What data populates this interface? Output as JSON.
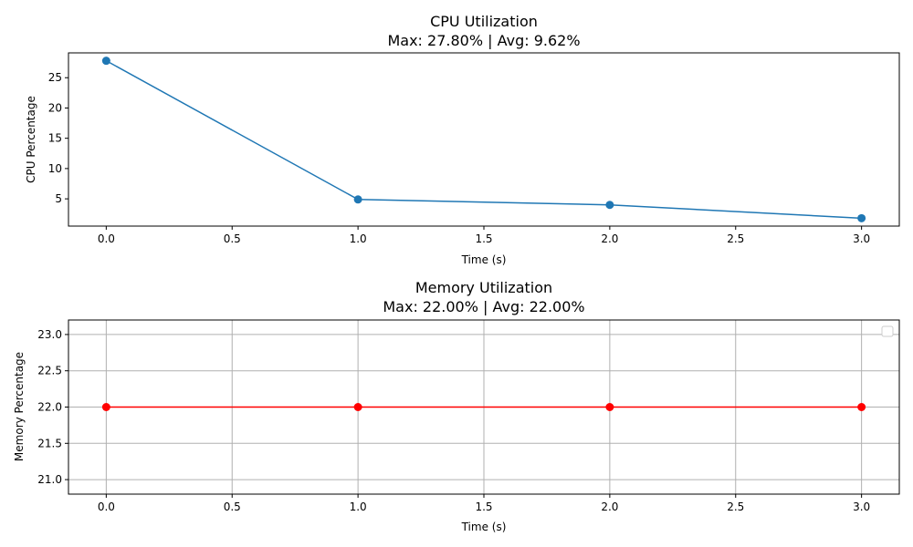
{
  "chart_data": [
    {
      "type": "line",
      "title": "CPU Utilization",
      "subtitle": "Max: 27.80% | Avg: 9.62%",
      "xlabel": "Time (s)",
      "ylabel": "CPU Percentage",
      "x": [
        0,
        1,
        2,
        3
      ],
      "series": [
        {
          "values": [
            27.8,
            4.9,
            4.0,
            1.8
          ],
          "color": "#1f77b4"
        }
      ],
      "xlim": [
        -0.15,
        3.15
      ],
      "ylim": [
        0.5,
        29.1
      ],
      "xticks": [
        0.0,
        0.5,
        1.0,
        1.5,
        2.0,
        2.5,
        3.0
      ],
      "xtick_labels": [
        "0.0",
        "0.5",
        "1.0",
        "1.5",
        "2.0",
        "2.5",
        "3.0"
      ],
      "yticks": [
        5,
        10,
        15,
        20,
        25
      ],
      "ytick_labels": [
        "5",
        "10",
        "15",
        "20",
        "25"
      ],
      "grid": false,
      "legend": false
    },
    {
      "type": "line",
      "title": "Memory Utilization",
      "subtitle": "Max: 22.00% | Avg: 22.00%",
      "xlabel": "Time (s)",
      "ylabel": "Memory Percentage",
      "x": [
        0,
        1,
        2,
        3
      ],
      "series": [
        {
          "values": [
            22.0,
            22.0,
            22.0,
            22.0
          ],
          "color": "#ff0000"
        }
      ],
      "xlim": [
        -0.15,
        3.15
      ],
      "ylim": [
        20.8,
        23.2
      ],
      "xticks": [
        0.0,
        0.5,
        1.0,
        1.5,
        2.0,
        2.5,
        3.0
      ],
      "xtick_labels": [
        "0.0",
        "0.5",
        "1.0",
        "1.5",
        "2.0",
        "2.5",
        "3.0"
      ],
      "yticks": [
        21.0,
        21.5,
        22.0,
        22.5,
        23.0
      ],
      "ytick_labels": [
        "21.0",
        "21.5",
        "22.0",
        "22.5",
        "23.0"
      ],
      "grid": true,
      "legend": "upper-right (empty)"
    }
  ]
}
